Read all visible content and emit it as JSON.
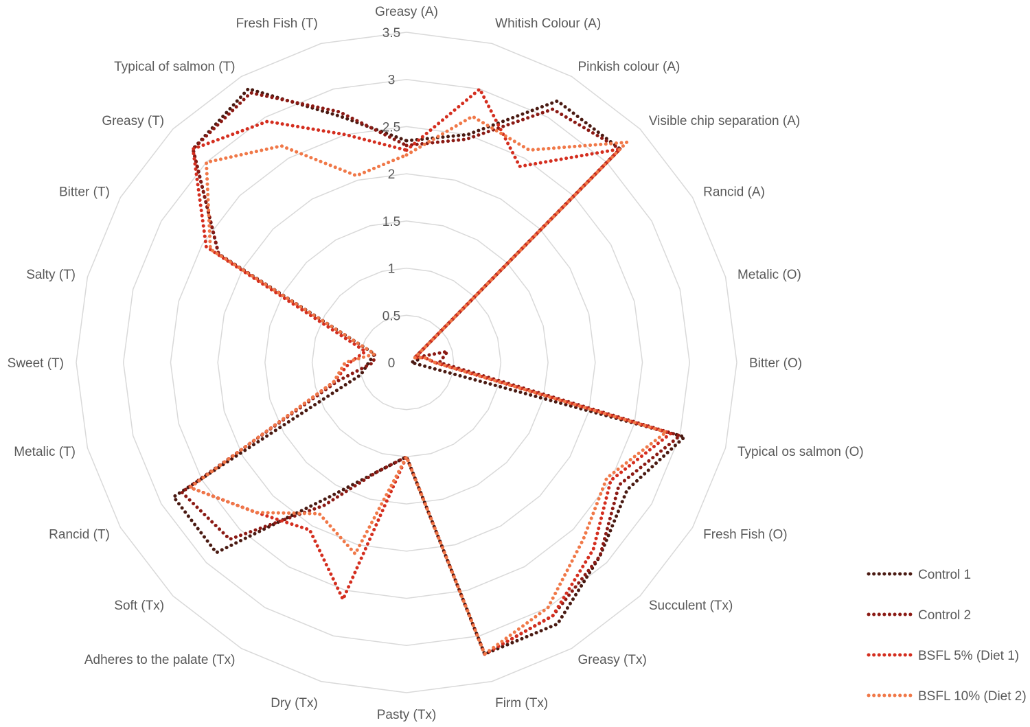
{
  "chart_data": {
    "type": "radar",
    "title": "",
    "categories": [
      "Greasy (A)",
      "Whitish Colour (A)",
      "Pinkish colour (A)",
      "Visible chip separation (A)",
      "Rancid (A)",
      "Metalic (O)",
      "Bitter (O)",
      "Typical os salmon (O)",
      "Fresh Fish (O)",
      "Succulent (Tx)",
      "Greasy (Tx)",
      "Firm (Tx)",
      "Pasty (Tx)",
      "Dry (Tx)",
      "Adheres to the palate (Tx)",
      "Soft (Tx)",
      "Rancid (T)",
      "Metalic (T)",
      "Sweet (T)",
      "Salty (T)",
      "Bitter (T)",
      "Greasy (T)",
      "Typical of salmon (T)",
      "Fresh Fish (T)"
    ],
    "rlim": [
      0,
      3.5
    ],
    "ticks": [
      0,
      0.5,
      1,
      1.5,
      2,
      2.5,
      3,
      3.5
    ],
    "tick_labels": [
      "0",
      "0.5",
      "1",
      "1.5",
      "2",
      "2.5",
      "3",
      "3.5"
    ],
    "grid": true,
    "legend_position": "bottom-right",
    "series": [
      {
        "name": "Control 1",
        "color": "#4a1a12",
        "values": [
          2.35,
          2.5,
          3.2,
          3.2,
          0.1,
          0.15,
          0.05,
          3.05,
          2.7,
          2.9,
          3.2,
          3.2,
          1.0,
          1.2,
          1.65,
          2.85,
          2.85,
          0.5,
          0.4,
          0.35,
          2.3,
          3.2,
          3.35,
          2.7
        ]
      },
      {
        "name": "Control 2",
        "color": "#8b1a14",
        "values": [
          2.3,
          2.45,
          3.1,
          3.2,
          0.1,
          0.45,
          0.35,
          3.0,
          2.6,
          2.9,
          3.1,
          3.2,
          1.0,
          1.2,
          1.75,
          2.65,
          2.75,
          0.75,
          0.35,
          0.35,
          2.3,
          3.2,
          3.3,
          2.75
        ]
      },
      {
        "name": "BSFL 5% (Diet 1)",
        "color": "#d42e1f",
        "values": [
          2.25,
          3.0,
          2.4,
          3.2,
          0.1,
          0.2,
          0.3,
          2.9,
          2.5,
          2.8,
          3.1,
          3.2,
          1.0,
          2.6,
          2.05,
          2.25,
          2.65,
          0.8,
          0.6,
          0.45,
          2.45,
          3.2,
          2.95,
          2.5
        ]
      },
      {
        "name": "BSFL 10% (Diet 2)",
        "color": "#f07848",
        "values": [
          2.2,
          2.7,
          2.6,
          3.3,
          0.1,
          0.2,
          0.3,
          2.85,
          2.45,
          2.65,
          3.0,
          3.2,
          1.0,
          2.1,
          1.85,
          2.25,
          2.65,
          0.8,
          0.65,
          0.35,
          2.4,
          3.0,
          2.65,
          2.05
        ]
      }
    ]
  }
}
